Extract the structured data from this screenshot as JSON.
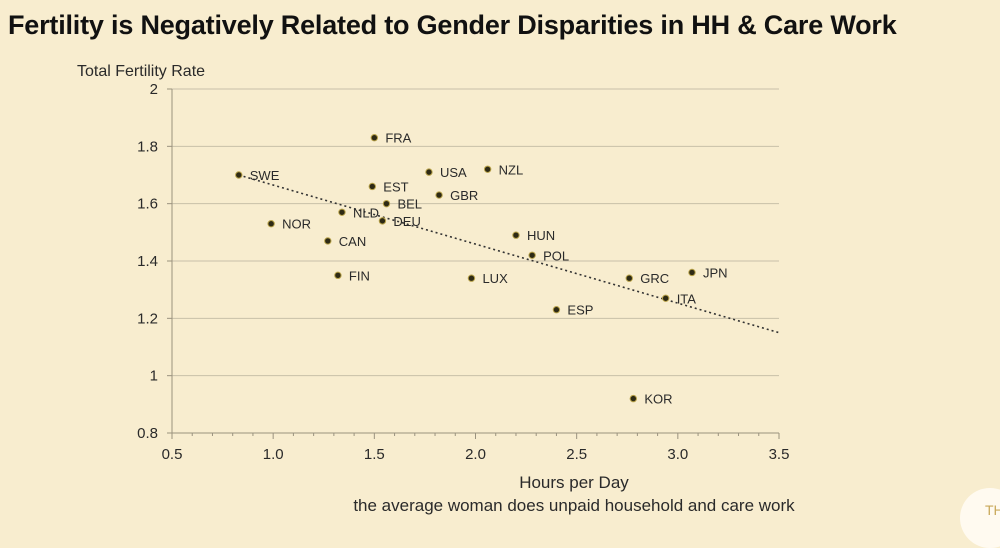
{
  "title": "Fertility is Negatively Related to Gender Disparities in HH & Care Work",
  "corner_text": "TH",
  "chart_data": {
    "type": "scatter",
    "ylabel": "Total Fertility Rate",
    "xlabel": "Hours per Day",
    "xlabel_sub": "the average woman does unpaid household and care work",
    "xlim": [
      0.5,
      3.5
    ],
    "ylim": [
      0.8,
      2.0
    ],
    "xticks": [
      "0.5",
      "1.0",
      "1.5",
      "2.0",
      "2.5",
      "3.0",
      "3.5"
    ],
    "yticks": [
      "0.8",
      "1",
      "1.2",
      "1.4",
      "1.6",
      "1.8",
      "2"
    ],
    "grid": "horizontal",
    "points": [
      {
        "label": "FRA",
        "x": 1.5,
        "y": 1.83
      },
      {
        "label": "SWE",
        "x": 0.83,
        "y": 1.7
      },
      {
        "label": "USA",
        "x": 1.77,
        "y": 1.71
      },
      {
        "label": "NZL",
        "x": 2.06,
        "y": 1.72
      },
      {
        "label": "EST",
        "x": 1.49,
        "y": 1.66
      },
      {
        "label": "GBR",
        "x": 1.82,
        "y": 1.63
      },
      {
        "label": "BEL",
        "x": 1.56,
        "y": 1.6
      },
      {
        "label": "NLD",
        "x": 1.34,
        "y": 1.57
      },
      {
        "label": "DEU",
        "x": 1.54,
        "y": 1.54
      },
      {
        "label": "NOR",
        "x": 0.99,
        "y": 1.53
      },
      {
        "label": "CAN",
        "x": 1.27,
        "y": 1.47
      },
      {
        "label": "HUN",
        "x": 2.2,
        "y": 1.49
      },
      {
        "label": "POL",
        "x": 2.28,
        "y": 1.42
      },
      {
        "label": "FIN",
        "x": 1.32,
        "y": 1.35
      },
      {
        "label": "LUX",
        "x": 1.98,
        "y": 1.34
      },
      {
        "label": "GRC",
        "x": 2.76,
        "y": 1.34
      },
      {
        "label": "JPN",
        "x": 3.07,
        "y": 1.36
      },
      {
        "label": "ITA",
        "x": 2.94,
        "y": 1.27
      },
      {
        "label": "ESP",
        "x": 2.4,
        "y": 1.23
      },
      {
        "label": "KOR",
        "x": 2.78,
        "y": 0.92
      }
    ],
    "trendline": {
      "x": [
        0.83,
        3.5
      ],
      "y": [
        1.7,
        1.15
      ]
    }
  }
}
